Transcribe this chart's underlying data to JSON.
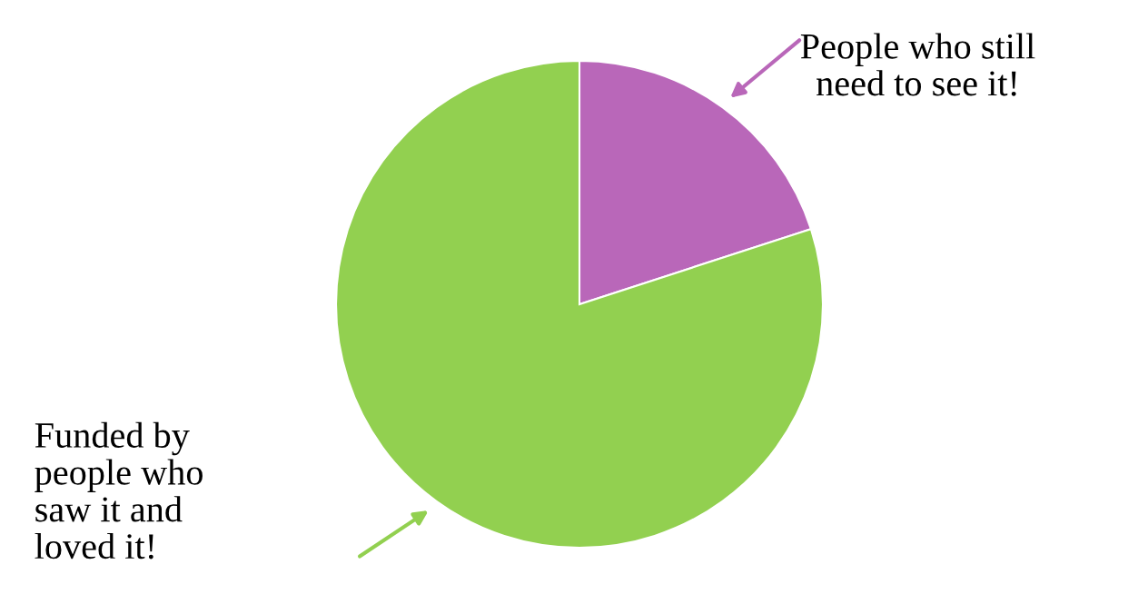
{
  "chart_data": {
    "type": "pie",
    "categories": [
      "People who still\nneed to see it!",
      "Funded by\npeople who\nsaw it and\nloved it!"
    ],
    "values": [
      20,
      80
    ],
    "colors": [
      "#b967b9",
      "#92d050"
    ]
  }
}
